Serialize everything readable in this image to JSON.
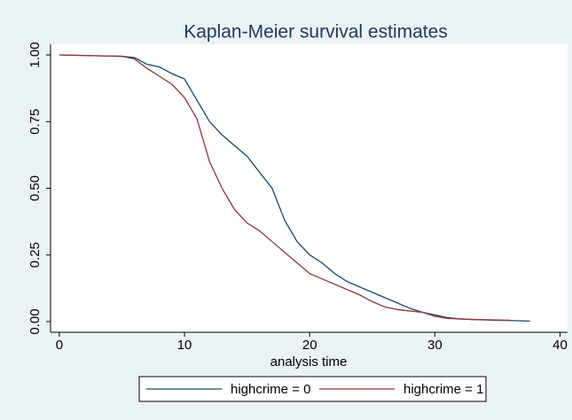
{
  "chart_data": {
    "type": "line",
    "title": "Kaplan-Meier survival estimates",
    "x_label": "analysis time",
    "x": [
      0,
      5,
      6,
      7,
      8,
      9,
      10,
      11,
      12,
      13,
      14,
      15,
      16,
      17,
      18,
      19,
      20,
      21,
      22,
      23,
      24,
      25,
      26,
      27,
      28,
      29,
      30,
      31,
      32,
      33,
      35,
      36,
      37.6
    ],
    "series": [
      {
        "name": "highcrime = 0",
        "color": "#1a476f",
        "values": [
          1,
          0.995,
          0.99,
          0.965,
          0.955,
          0.93,
          0.91,
          0.83,
          0.75,
          0.7,
          0.66,
          0.62,
          0.56,
          0.5,
          0.38,
          0.3,
          0.25,
          0.22,
          0.18,
          0.15,
          0.13,
          0.11,
          0.09,
          0.07,
          0.05,
          0.035,
          0.025,
          0.015,
          0.01,
          0.008,
          0.005,
          0.004,
          0.002
        ]
      },
      {
        "name": "highcrime = 1",
        "color": "#90353b",
        "values": [
          1,
          0.995,
          0.985,
          0.95,
          0.92,
          0.89,
          0.84,
          0.76,
          0.6,
          0.5,
          0.42,
          0.37,
          0.34,
          0.3,
          0.26,
          0.22,
          0.18,
          0.16,
          0.14,
          0.12,
          0.1,
          0.075,
          0.055,
          0.045,
          0.04,
          0.035,
          0.02,
          0.012,
          0.01,
          0.008,
          0.006,
          0.005,
          null
        ]
      }
    ],
    "xlim": [
      -0.7,
      40.6
    ],
    "ylim": [
      -0.04,
      1.04
    ],
    "xticks": [
      0,
      10,
      20,
      30,
      40
    ],
    "yticks": [
      {
        "value": 0,
        "label": "0.00"
      },
      {
        "value": 0.25,
        "label": "0.25"
      },
      {
        "value": 0.5,
        "label": "0.50"
      },
      {
        "value": 0.75,
        "label": "0.75"
      },
      {
        "value": 1,
        "label": "1.00"
      }
    ],
    "grid": false,
    "legend": "bottom"
  }
}
